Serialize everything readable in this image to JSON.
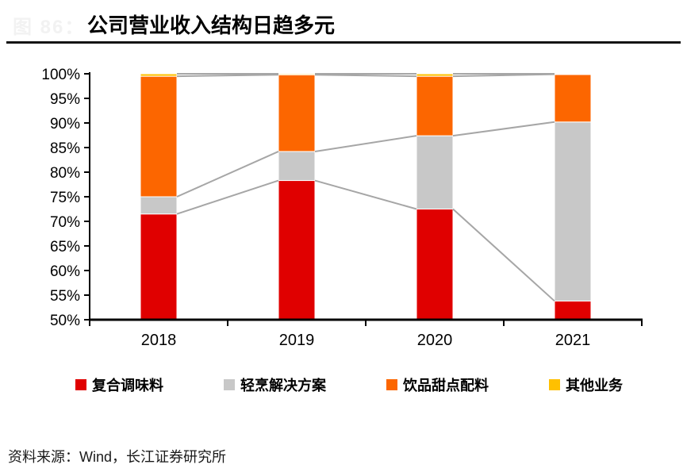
{
  "figure_label": "图 86：",
  "title": "公司营业收入结构日趋多元",
  "source": "资料来源：Wind，长江证券研究所",
  "colors": {
    "connector_line": "#a6a6a6",
    "axis": "#000000",
    "divider": "#141414",
    "figure_label": "#f2f2f2"
  },
  "chart_data": {
    "type": "bar",
    "stacked": true,
    "title": "公司营业收入结构日趋多元",
    "categories": [
      "2018",
      "2019",
      "2020",
      "2021"
    ],
    "series": [
      {
        "name": "复合调味料",
        "color": "#e00000",
        "values": [
          71.5,
          78.3,
          72.5,
          53.8
        ]
      },
      {
        "name": "轻烹解决方案",
        "color": "#c8c8c8",
        "values": [
          3.5,
          5.9,
          14.9,
          36.4
        ]
      },
      {
        "name": "饮品甜点配料",
        "color": "#fc6600",
        "values": [
          24.5,
          15.6,
          12.1,
          9.7
        ]
      },
      {
        "name": "其他业务",
        "color": "#ffc000",
        "values": [
          0.5,
          0.2,
          0.5,
          0.1
        ]
      }
    ],
    "ylim": [
      50,
      100
    ],
    "ytick_labels": [
      "100%",
      "95%",
      "90%",
      "85%",
      "80%",
      "75%",
      "70%",
      "65%",
      "60%",
      "55%",
      "50%"
    ],
    "ytick_step": 5,
    "xlabel": "",
    "ylabel": "",
    "grid": false,
    "legend_position": "bottom",
    "series_connector_lines": true
  }
}
